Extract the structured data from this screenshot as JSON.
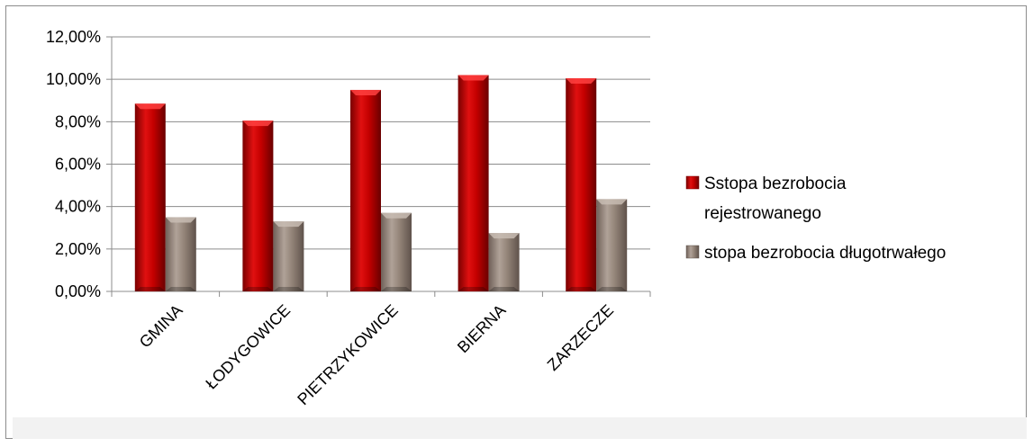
{
  "chart_data": {
    "type": "bar",
    "categories": [
      "GMINA",
      "ŁODYGOWICE",
      "PIETRZYKOWICE",
      "BIERNA",
      "ZARZECZE"
    ],
    "series": [
      {
        "name": "Sstopa bezrobocia rejestrowanego",
        "legend_lines": [
          "Sstopa bezrobocia",
          "rejestrowanego"
        ],
        "values": [
          8.85,
          8.05,
          9.5,
          10.2,
          10.05
        ],
        "color": "#c00000"
      },
      {
        "name": "stopa bezrobocia długotrwałego",
        "legend_lines": [
          "stopa bezrobocia długotrwałego"
        ],
        "values": [
          3.5,
          3.3,
          3.7,
          2.75,
          4.35
        ],
        "color": "#8b7b71"
      }
    ],
    "y_ticks": [
      "0,00%",
      "2,00%",
      "4,00%",
      "6,00%",
      "8,00%",
      "10,00%",
      "12,00%"
    ],
    "ylim": [
      0,
      12
    ],
    "y_unit": "%",
    "grid": true,
    "legend_position": "right",
    "title": "",
    "xlabel": "",
    "ylabel": ""
  }
}
